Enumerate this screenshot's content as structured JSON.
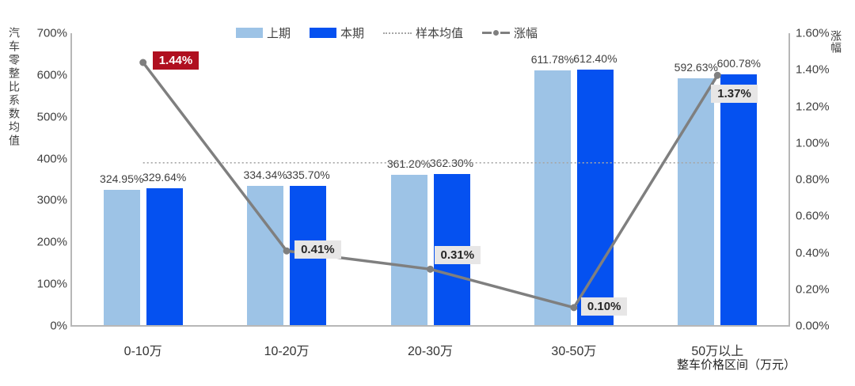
{
  "legend": {
    "items": [
      {
        "label": "上期",
        "type": "bar",
        "color": "#9DC3E6"
      },
      {
        "label": "本期",
        "type": "bar",
        "color": "#0551F0"
      },
      {
        "label": "样本均值",
        "type": "dotted-line",
        "color": "#A6A6A6"
      },
      {
        "label": "涨幅",
        "type": "line-marker",
        "color": "#7F7F7F"
      }
    ]
  },
  "chart_data": {
    "type": "bar",
    "subtype": "bar-line-combo",
    "grid": false,
    "legend_position": "top",
    "categories": [
      "0-10万",
      "10-20万",
      "20-30万",
      "30-50万",
      "50万以上"
    ],
    "series": [
      {
        "name": "上期",
        "type": "bar",
        "axis": "left",
        "color": "#9DC3E6",
        "values": [
          324.95,
          334.34,
          361.2,
          611.78,
          592.63
        ],
        "labels": [
          "324.95%",
          "334.34%",
          "361.20%",
          "611.78%",
          "592.63%"
        ]
      },
      {
        "name": "本期",
        "type": "bar",
        "axis": "left",
        "color": "#0551F0",
        "values": [
          329.64,
          335.7,
          362.3,
          612.4,
          600.78
        ],
        "labels": [
          "329.64%",
          "335.70%",
          "362.30%",
          "612.40%",
          "600.78%"
        ]
      },
      {
        "name": "涨幅",
        "type": "line",
        "axis": "right",
        "color": "#7F7F7F",
        "values": [
          1.44,
          0.41,
          0.31,
          0.1,
          1.37
        ],
        "labels": [
          "1.44%",
          "0.41%",
          "0.31%",
          "0.10%",
          "1.37%"
        ],
        "highlight_index": 0
      }
    ],
    "reference_line": {
      "name": "样本均值",
      "axis": "left",
      "value": 390,
      "style": "dotted",
      "color": "#A6A6A6"
    },
    "left_axis": {
      "title": "汽车零整比系数均值",
      "min": 0,
      "max": 700,
      "ticks": [
        "0%",
        "100%",
        "200%",
        "300%",
        "400%",
        "500%",
        "600%",
        "700%"
      ]
    },
    "right_axis": {
      "title": "涨幅",
      "min": 0,
      "max": 1.6,
      "ticks": [
        "0.00%",
        "0.20%",
        "0.40%",
        "0.60%",
        "0.80%",
        "1.00%",
        "1.20%",
        "1.40%",
        "1.60%"
      ]
    },
    "x_axis": {
      "title": "整车价格区间（万元）"
    },
    "callout_colors": {
      "highlight_bg": "#B01020",
      "highlight_text": "#FFFFFF",
      "bg": "#E7E6E6",
      "text": "#262626"
    }
  }
}
